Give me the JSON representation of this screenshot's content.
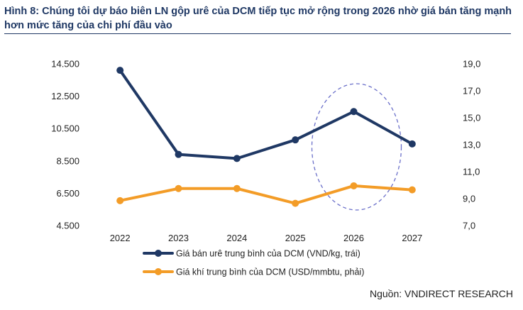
{
  "title": "Hình 8: Chúng tôi dự báo biên LN gộp urê của DCM tiếp tục mở rộng trong 2026 nhờ giá bán tăng mạnh hơn mức tăng của chi phí đầu vào",
  "source": "Nguồn: VNDIRECT RESEARCH",
  "colors": {
    "primary": "#1f3864",
    "secondary": "#f39c27",
    "highlight": "#6a6fc9",
    "title": "#1f3864"
  },
  "chart_data": {
    "type": "line",
    "title": "Hình 8: Chúng tôi dự báo biên LN gộp urê của DCM tiếp tục mở rộng trong 2026 nhờ giá bán tăng mạnh hơn mức tăng của chi phí đầu vào",
    "categories": [
      "2022",
      "2023",
      "2024",
      "2025",
      "2026",
      "2027"
    ],
    "y_left": {
      "min": 4500,
      "max": 14500,
      "ticks": [
        "4.500",
        "6.500",
        "8.500",
        "10.500",
        "12.500",
        "14.500"
      ],
      "tick_values": [
        4500,
        6500,
        8500,
        10500,
        12500,
        14500
      ]
    },
    "y_right": {
      "min": 7,
      "max": 19,
      "ticks": [
        "7,0",
        "9,0",
        "11,0",
        "13,0",
        "15,0",
        "17,0",
        "19,0"
      ],
      "tick_values": [
        7,
        9,
        11,
        13,
        15,
        17,
        19
      ]
    },
    "series": [
      {
        "name": "Giá bán urê trung bình của DCM (VND/kg, trái)",
        "axis": "left",
        "color": "#1f3864",
        "values": [
          14100,
          8900,
          8650,
          9800,
          11550,
          9550
        ]
      },
      {
        "name": "Giá khí trung bình của DCM (USD/mmbtu, phải)",
        "axis": "right",
        "color": "#f39c27",
        "values": [
          8.85,
          9.75,
          9.75,
          8.65,
          9.95,
          9.65
        ]
      }
    ],
    "annotation": {
      "type": "dashed-ellipse",
      "around_category": "2026"
    },
    "grid": false,
    "legend": "bottom-center"
  }
}
